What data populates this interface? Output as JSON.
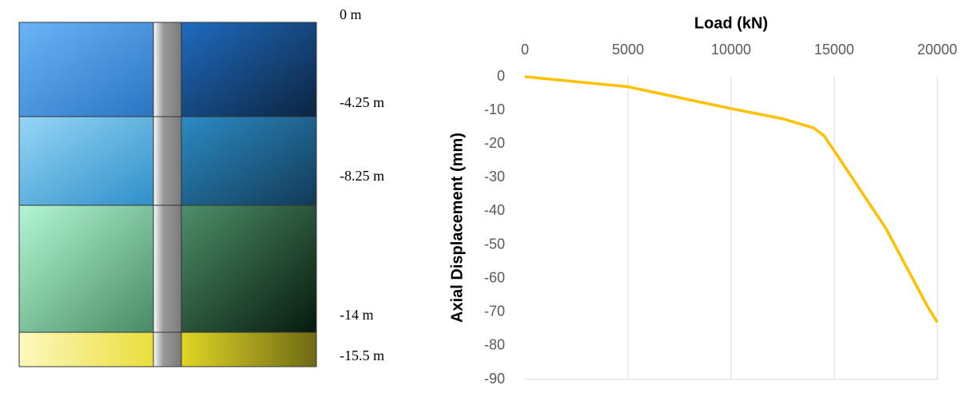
{
  "diagram": {
    "depth_labels": [
      "0 m",
      "-4.25 m",
      "-8.25 m",
      "-14 m",
      "-15.5 m"
    ]
  },
  "chart_data": {
    "type": "line",
    "x_label": "Load (kN)",
    "y_label": "Axial Displacement (mm)",
    "x_axis_position": "top",
    "grid": "vertical",
    "xlim": [
      0,
      20000
    ],
    "xticks": [
      0,
      5000,
      10000,
      15000,
      20000
    ],
    "ylim": [
      -90,
      0
    ],
    "yticks": [
      0,
      -10,
      -20,
      -30,
      -40,
      -50,
      -60,
      -70,
      -80,
      -90
    ],
    "series": [
      {
        "color": "#ffc000",
        "x": [
          0,
          5000,
          10000,
          12500,
          14000,
          14500,
          15000,
          17500,
          19500,
          20000
        ],
        "values": [
          0,
          -3,
          -9.5,
          -12.5,
          -15.2,
          -17.5,
          -22,
          -45,
          -68,
          -73
        ]
      }
    ]
  }
}
